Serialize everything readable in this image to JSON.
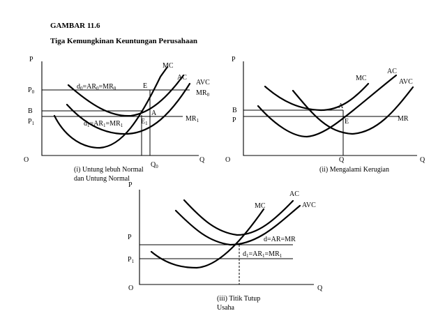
{
  "figure": {
    "number": "GAMBAR 11.6",
    "title": "Tiga Kemungkinan Keuntungan Perusahaan"
  },
  "panel1": {
    "y_axis": "P",
    "x_axis": "Q",
    "origin": "O",
    "p0": "P",
    "p0_sub": "0",
    "b": "B",
    "p1": "P",
    "p1_sub": "1",
    "q0": "Q",
    "q0_sub": "0",
    "mc": "MC",
    "ac": "AC",
    "avc": "AVC",
    "mr0": "MR",
    "mr0_sub": "0",
    "mr1": "MR",
    "mr1_sub": "1",
    "point_e": "E",
    "point_a": "A",
    "point_e1": "E",
    "point_e1_sub": "1",
    "d0_parts": [
      "d",
      "0",
      "=AR",
      "0",
      "=MR",
      "0"
    ],
    "d1_parts": [
      "d",
      "1",
      "=AR",
      "1",
      "=MR",
      "1"
    ],
    "caption_line1": "(i) Untung lebuh Normal",
    "caption_line2": "dan Untung Normal"
  },
  "panel2": {
    "y_axis": "P",
    "x_axis": "Q",
    "origin": "O",
    "b": "B",
    "p": "P",
    "q": "Q",
    "mc": "MC",
    "ac": "AC",
    "avc": "AVC",
    "mr": "MR",
    "point_a": "A",
    "point_e": "E",
    "caption": "(ii) Mengalami Kerugian"
  },
  "panel3": {
    "y_axis": "P",
    "x_axis": "Q",
    "origin": "O",
    "p": "P",
    "p1": "P",
    "p1_sub": "1",
    "mc": "MC",
    "ac": "AC",
    "avc": "AVC",
    "d_line": "d=AR=MR",
    "d1_parts": [
      "d",
      "1",
      "=AR",
      "1",
      "=MR",
      "1"
    ],
    "caption_line1": "(iii) Titik Tutup",
    "caption_line2": "Usaha"
  }
}
